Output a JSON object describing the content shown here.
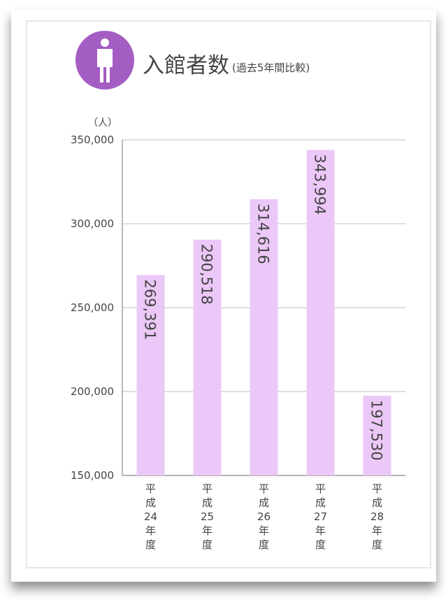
{
  "chart_data": {
    "type": "bar",
    "title": "入館者数",
    "subtitle": "(過去5年間比較)",
    "y_axis_label": "（人）",
    "categories": [
      "平成24年度",
      "平成25年度",
      "平成26年度",
      "平成27年度",
      "平成28年度"
    ],
    "values": [
      269391,
      290518,
      314616,
      343994,
      197530
    ],
    "value_labels": [
      "269,391",
      "290,518",
      "314,616",
      "343,994",
      "197,530"
    ],
    "color": "#ebc8f7",
    "label_color": "#b27fd3",
    "ylim": [
      150000,
      350000
    ],
    "yticks": [
      {
        "value": 150000,
        "label": "150,000"
      },
      {
        "value": 200000,
        "label": "200,000"
      },
      {
        "value": 250000,
        "label": "250,000"
      },
      {
        "value": 300000,
        "label": "300,000"
      },
      {
        "value": 350000,
        "label": "350,000"
      }
    ],
    "grid": true
  }
}
